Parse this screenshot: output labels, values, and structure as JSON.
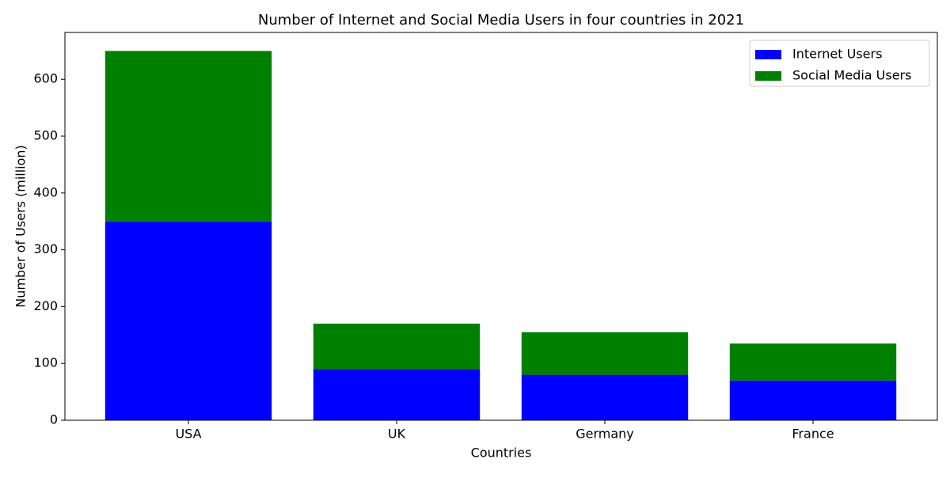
{
  "chart_data": {
    "type": "stacked_bar",
    "title": "Number of Internet and Social Media Users in four countries in 2021",
    "x_label": "Countries",
    "y_label": "Number of Users (million)",
    "categories": [
      "USA",
      "UK",
      "Germany",
      "France"
    ],
    "series": [
      {
        "name": "Internet Users",
        "color": "#0000ff",
        "values": [
          350,
          90,
          80,
          70
        ]
      },
      {
        "name": "Social Media Users",
        "color": "#008000",
        "values": [
          300,
          80,
          75,
          65
        ]
      }
    ],
    "ylim": [
      0,
      682.5
    ],
    "yticks": [
      0,
      100,
      200,
      300,
      400,
      500,
      600
    ],
    "legend": "upper right",
    "data_labels_series": 0
  }
}
